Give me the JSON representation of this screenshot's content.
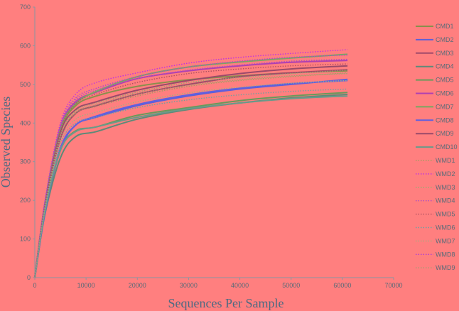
{
  "chart_data": {
    "type": "line",
    "title": "",
    "xlabel": "Sequences Per Sample",
    "ylabel": "Observed Species",
    "xlim": [
      0,
      70000
    ],
    "ylim": [
      0,
      700
    ],
    "xticks": [
      0,
      10000,
      20000,
      30000,
      40000,
      50000,
      60000,
      70000
    ],
    "yticks": [
      0,
      100,
      200,
      300,
      400,
      500,
      600,
      700
    ],
    "grid": false,
    "legend_position": "right",
    "x": [
      0,
      2000,
      5000,
      8000,
      12000,
      20000,
      30000,
      40000,
      50000,
      61000
    ],
    "series": [
      {
        "name": "CMD1",
        "style": "solid",
        "color": "#8a8f4c",
        "values": [
          0,
          190,
          380,
          445,
          470,
          495,
          512,
          522,
          530,
          535
        ]
      },
      {
        "name": "CMD2",
        "style": "solid",
        "color": "#5e5fd8",
        "values": [
          0,
          170,
          330,
          395,
          415,
          445,
          470,
          488,
          500,
          513
        ]
      },
      {
        "name": "CMD3",
        "style": "solid",
        "color": "#a14a6a",
        "values": [
          0,
          185,
          360,
          425,
          445,
          475,
          500,
          520,
          530,
          538
        ]
      },
      {
        "name": "CMD4",
        "style": "solid",
        "color": "#5e8a78",
        "values": [
          0,
          165,
          310,
          365,
          378,
          410,
          435,
          452,
          465,
          474
        ]
      },
      {
        "name": "CMD5",
        "style": "solid",
        "color": "#6a9a5a",
        "values": [
          0,
          175,
          330,
          380,
          390,
          420,
          440,
          458,
          470,
          479
        ]
      },
      {
        "name": "CMD6",
        "style": "solid",
        "color": "#b040b0",
        "values": [
          0,
          195,
          390,
          455,
          480,
          515,
          535,
          548,
          557,
          562
        ]
      },
      {
        "name": "CMD7",
        "style": "solid",
        "color": "#7aa660",
        "values": [
          0,
          195,
          385,
          450,
          482,
          520,
          545,
          558,
          568,
          578
        ]
      },
      {
        "name": "CMD8",
        "style": "solid",
        "color": "#6060e0",
        "values": [
          0,
          170,
          335,
          395,
          418,
          448,
          473,
          490,
          502,
          510
        ]
      },
      {
        "name": "CMD9",
        "style": "solid",
        "color": "#9a4a6a",
        "values": [
          0,
          188,
          375,
          435,
          455,
          485,
          510,
          528,
          540,
          548
        ]
      },
      {
        "name": "CMD10",
        "style": "solid",
        "color": "#6a9a8a",
        "values": [
          0,
          175,
          330,
          378,
          390,
          415,
          437,
          452,
          463,
          470
        ]
      },
      {
        "name": "WMD1",
        "style": "dotted",
        "color": "#a0a060",
        "values": [
          0,
          183,
          365,
          425,
          443,
          470,
          495,
          510,
          520,
          530
        ]
      },
      {
        "name": "WMD2",
        "style": "dotted",
        "color": "#c030e0",
        "values": [
          0,
          200,
          400,
          475,
          505,
          530,
          555,
          570,
          580,
          590
        ]
      },
      {
        "name": "WMD3",
        "style": "dotted",
        "color": "#90b070",
        "values": [
          0,
          185,
          370,
          432,
          452,
          480,
          505,
          518,
          528,
          537
        ]
      },
      {
        "name": "WMD4",
        "style": "dotted",
        "color": "#b050c0",
        "values": [
          0,
          196,
          390,
          460,
          485,
          515,
          537,
          550,
          560,
          565
        ]
      },
      {
        "name": "WMD5",
        "style": "dotted",
        "color": "#b05060",
        "values": [
          0,
          192,
          382,
          450,
          475,
          505,
          528,
          540,
          548,
          553
        ]
      },
      {
        "name": "WMD6",
        "style": "dotted",
        "color": "#70a0a0",
        "values": [
          0,
          178,
          345,
          400,
          415,
          440,
          460,
          473,
          482,
          488
        ]
      },
      {
        "name": "WMD7",
        "style": "dotted",
        "color": "#a0b080",
        "values": [
          0,
          180,
          355,
          410,
          428,
          455,
          478,
          493,
          503,
          510
        ]
      },
      {
        "name": "WMD8",
        "style": "dotted",
        "color": "#b040d0",
        "values": [
          0,
          198,
          395,
          465,
          490,
          520,
          545,
          560,
          570,
          576
        ]
      },
      {
        "name": "WMD9",
        "style": "dotted",
        "color": "#a0a070",
        "values": [
          0,
          184,
          368,
          428,
          447,
          475,
          498,
          512,
          522,
          528
        ]
      }
    ]
  }
}
